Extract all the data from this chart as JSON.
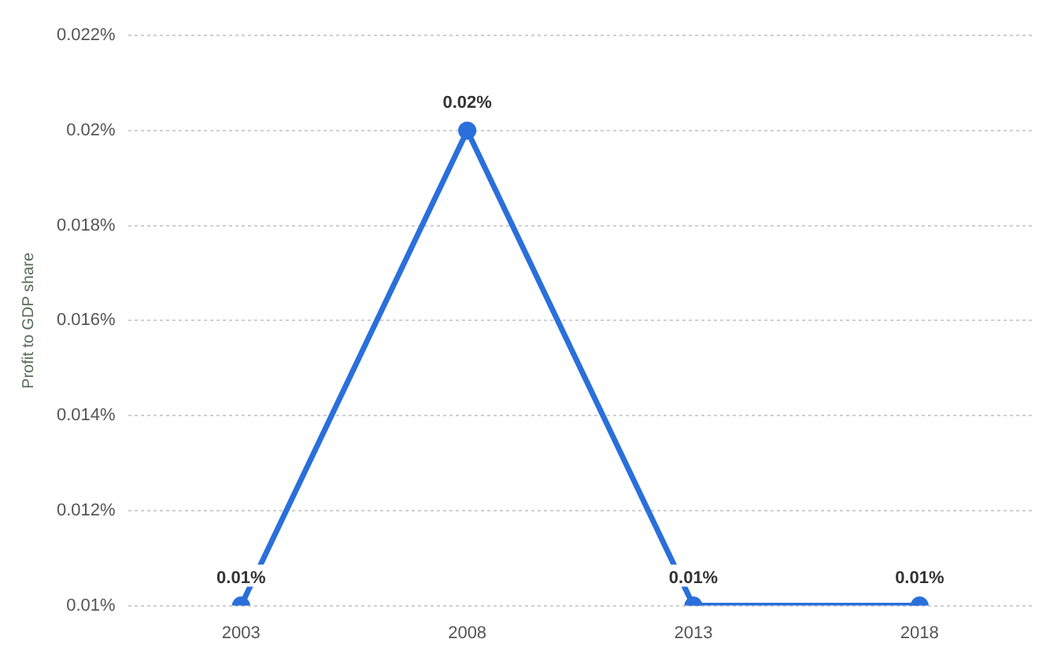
{
  "chart_data": {
    "type": "line",
    "ylabel": "Profit to GDP share",
    "categories": [
      "2003",
      "2008",
      "2013",
      "2018"
    ],
    "series": [
      {
        "color": "#2a6fdb",
        "values": [
          0.01,
          0.02,
          0.01,
          0.01
        ],
        "value_labels": [
          "0.01%",
          "0.02%",
          "0.01%",
          "0.01%"
        ]
      }
    ],
    "ylim": [
      0.01,
      0.022
    ],
    "yticks": [
      {
        "value": 0.01,
        "label": "0.01%"
      },
      {
        "value": 0.012,
        "label": "0.012%"
      },
      {
        "value": 0.014,
        "label": "0.014%"
      },
      {
        "value": 0.016,
        "label": "0.016%"
      },
      {
        "value": 0.018,
        "label": "0.018%"
      },
      {
        "value": 0.02,
        "label": "0.02%"
      },
      {
        "value": 0.022,
        "label": "0.022%"
      }
    ],
    "grid": "y",
    "legend": false,
    "marker": "circle",
    "line_style": "solid"
  }
}
